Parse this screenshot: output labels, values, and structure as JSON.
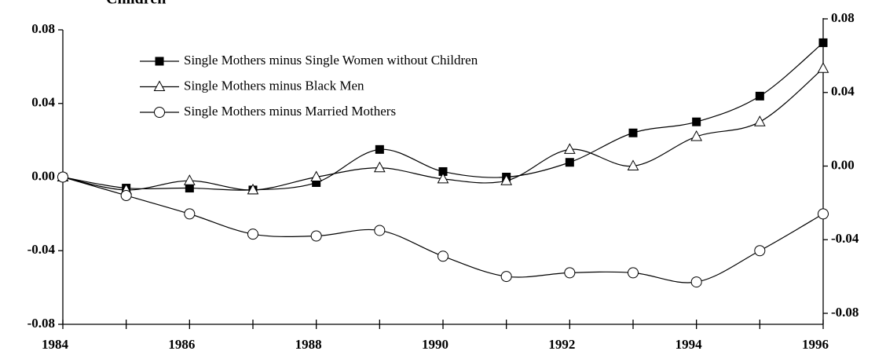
{
  "chart_data": {
    "type": "line",
    "title": "Children",
    "x": [
      1984,
      1985,
      1986,
      1987,
      1988,
      1989,
      1990,
      1991,
      1992,
      1993,
      1994,
      1995,
      1996
    ],
    "series": [
      {
        "name": "Single Mothers minus Single Women without Children",
        "color": "#000000",
        "marker": "filled-square",
        "values": [
          0.0,
          -0.006,
          -0.006,
          -0.007,
          -0.003,
          0.015,
          0.003,
          0.0,
          0.008,
          0.024,
          0.03,
          0.044,
          0.073
        ]
      },
      {
        "name": "Single Mothers minus Black Men",
        "color": "#000000",
        "marker": "open-triangle",
        "values": [
          0.0,
          -0.007,
          -0.002,
          -0.007,
          0.0,
          0.005,
          -0.001,
          -0.002,
          0.015,
          0.006,
          0.022,
          0.03,
          0.059
        ]
      },
      {
        "name": "Single Mothers minus Married Mothers",
        "color": "#000000",
        "marker": "open-circle",
        "values": [
          0.0,
          -0.01,
          -0.02,
          -0.031,
          -0.032,
          -0.029,
          -0.043,
          -0.054,
          -0.052,
          -0.052,
          -0.057,
          -0.04,
          -0.02
        ]
      }
    ],
    "xlim": [
      1984,
      1996
    ],
    "xticks": [
      1984,
      1986,
      1988,
      1990,
      1992,
      1994,
      1996
    ],
    "ylim": [
      -0.08,
      0.08
    ],
    "yticks": [
      {
        "value": -0.08,
        "label": "-0.08"
      },
      {
        "value": -0.04,
        "label": "-0.04"
      },
      {
        "value": 0,
        "label": "0.00"
      },
      {
        "value": 0.04,
        "label": "0.04"
      },
      {
        "value": 0.08,
        "label": "0.08"
      }
    ],
    "y2lim": [
      -0.08,
      0.08
    ],
    "y2ticks": [
      {
        "value": -0.08,
        "label": "-0.08"
      },
      {
        "value": -0.04,
        "label": "-0.04"
      },
      {
        "value": 0,
        "label": "0.00"
      },
      {
        "value": 0.04,
        "label": "0.04"
      },
      {
        "value": 0.08,
        "label": "0.08"
      }
    ],
    "legend": "upper-left",
    "grid": false
  }
}
